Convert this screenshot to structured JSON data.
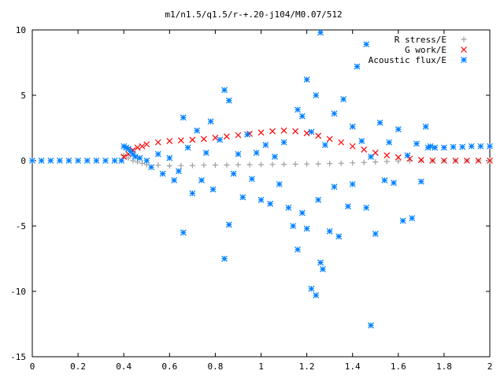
{
  "chart_data": {
    "type": "scatter",
    "title": "m1/n1.5/q1.5/r-+.20-j104/M0.07/512",
    "xlabel": "",
    "ylabel": "",
    "xlim": [
      0,
      2
    ],
    "ylim": [
      -15,
      10
    ],
    "x_ticks": [
      "0",
      "0.2",
      "0.4",
      "0.6",
      "0.8",
      "1",
      "1.2",
      "1.4",
      "1.6",
      "1.8",
      "2"
    ],
    "y_ticks": [
      "10",
      "5",
      "0",
      "-5",
      "-10",
      "-15"
    ],
    "grid": false,
    "legend_position": "top-right",
    "series": [
      {
        "name": "R stress/E",
        "color": "#a0a0a0",
        "marker": "plus",
        "points": [
          [
            0.4,
            0.4
          ],
          [
            0.42,
            0.2
          ],
          [
            0.44,
            0.0
          ],
          [
            0.46,
            -0.1
          ],
          [
            0.48,
            -0.2
          ],
          [
            0.5,
            -0.3
          ],
          [
            0.55,
            -0.35
          ],
          [
            0.6,
            -0.4
          ],
          [
            0.65,
            -0.38
          ],
          [
            0.7,
            -0.37
          ],
          [
            0.75,
            -0.35
          ],
          [
            0.8,
            -0.34
          ],
          [
            0.85,
            -0.33
          ],
          [
            0.9,
            -0.32
          ],
          [
            0.95,
            -0.31
          ],
          [
            1.0,
            -0.3
          ],
          [
            1.05,
            -0.29
          ],
          [
            1.1,
            -0.28
          ],
          [
            1.15,
            -0.27
          ],
          [
            1.2,
            -0.26
          ],
          [
            1.25,
            -0.25
          ],
          [
            1.3,
            -0.22
          ],
          [
            1.35,
            -0.2
          ],
          [
            1.4,
            -0.17
          ],
          [
            1.45,
            -0.14
          ],
          [
            1.5,
            -0.1
          ],
          [
            1.55,
            -0.07
          ],
          [
            1.6,
            -0.04
          ],
          [
            1.65,
            -0.02
          ],
          [
            1.7,
            0.0
          ],
          [
            1.75,
            0.0
          ],
          [
            1.8,
            0.0
          ],
          [
            1.85,
            0.0
          ],
          [
            1.9,
            0.0
          ],
          [
            1.95,
            0.0
          ],
          [
            2.0,
            0.0
          ]
        ]
      },
      {
        "name": "G work/E",
        "color": "#ff0000",
        "marker": "cross",
        "points": [
          [
            0.4,
            0.3
          ],
          [
            0.42,
            0.5
          ],
          [
            0.44,
            0.8
          ],
          [
            0.46,
            1.0
          ],
          [
            0.48,
            1.1
          ],
          [
            0.5,
            1.25
          ],
          [
            0.55,
            1.4
          ],
          [
            0.6,
            1.5
          ],
          [
            0.65,
            1.55
          ],
          [
            0.7,
            1.6
          ],
          [
            0.75,
            1.65
          ],
          [
            0.8,
            1.75
          ],
          [
            0.85,
            1.85
          ],
          [
            0.9,
            1.95
          ],
          [
            0.95,
            2.05
          ],
          [
            1.0,
            2.15
          ],
          [
            1.05,
            2.25
          ],
          [
            1.1,
            2.3
          ],
          [
            1.15,
            2.25
          ],
          [
            1.2,
            2.1
          ],
          [
            1.25,
            1.9
          ],
          [
            1.3,
            1.65
          ],
          [
            1.35,
            1.4
          ],
          [
            1.4,
            1.1
          ],
          [
            1.45,
            0.85
          ],
          [
            1.5,
            0.6
          ],
          [
            1.55,
            0.4
          ],
          [
            1.6,
            0.25
          ],
          [
            1.65,
            0.15
          ],
          [
            1.7,
            0.05
          ],
          [
            1.75,
            0.0
          ],
          [
            1.8,
            0.0
          ],
          [
            1.85,
            0.0
          ],
          [
            1.9,
            0.0
          ],
          [
            1.95,
            0.0
          ],
          [
            2.0,
            0.0
          ]
        ]
      },
      {
        "name": "Acoustic flux/E",
        "color": "#0080ff",
        "marker": "star",
        "points": [
          [
            0.0,
            0.0
          ],
          [
            0.04,
            0.0
          ],
          [
            0.08,
            0.0
          ],
          [
            0.12,
            0.0
          ],
          [
            0.16,
            0.0
          ],
          [
            0.2,
            0.0
          ],
          [
            0.24,
            0.0
          ],
          [
            0.28,
            0.0
          ],
          [
            0.32,
            0.0
          ],
          [
            0.36,
            0.0
          ],
          [
            0.39,
            0.0
          ],
          [
            0.4,
            1.1
          ],
          [
            0.41,
            1.0
          ],
          [
            0.42,
            0.9
          ],
          [
            0.43,
            0.7
          ],
          [
            0.44,
            0.5
          ],
          [
            0.45,
            0.3
          ],
          [
            0.47,
            0.2
          ],
          [
            0.5,
            0.0
          ],
          [
            0.52,
            -0.5
          ],
          [
            0.55,
            0.5
          ],
          [
            0.57,
            -1.0
          ],
          [
            0.6,
            0.2
          ],
          [
            0.62,
            -1.5
          ],
          [
            0.64,
            -0.8
          ],
          [
            0.66,
            3.3
          ],
          [
            0.66,
            -5.5
          ],
          [
            0.68,
            1.0
          ],
          [
            0.7,
            -2.5
          ],
          [
            0.72,
            2.3
          ],
          [
            0.74,
            -1.5
          ],
          [
            0.76,
            0.6
          ],
          [
            0.78,
            3.0
          ],
          [
            0.79,
            -2.2
          ],
          [
            0.82,
            1.6
          ],
          [
            0.84,
            5.4
          ],
          [
            0.84,
            -7.5
          ],
          [
            0.86,
            4.6
          ],
          [
            0.86,
            -4.9
          ],
          [
            0.88,
            -1.0
          ],
          [
            0.9,
            0.5
          ],
          [
            0.92,
            -2.8
          ],
          [
            0.94,
            2.0
          ],
          [
            0.96,
            -1.4
          ],
          [
            0.98,
            0.6
          ],
          [
            1.0,
            -3.0
          ],
          [
            1.02,
            1.2
          ],
          [
            1.04,
            -3.3
          ],
          [
            1.06,
            0.3
          ],
          [
            1.08,
            -1.8
          ],
          [
            1.1,
            1.4
          ],
          [
            1.12,
            -3.6
          ],
          [
            1.14,
            -5.0
          ],
          [
            1.16,
            3.9
          ],
          [
            1.16,
            -6.8
          ],
          [
            1.18,
            3.4
          ],
          [
            1.18,
            -4.0
          ],
          [
            1.2,
            6.2
          ],
          [
            1.2,
            -5.2
          ],
          [
            1.22,
            2.2
          ],
          [
            1.22,
            -9.8
          ],
          [
            1.24,
            5.0
          ],
          [
            1.24,
            -10.3
          ],
          [
            1.25,
            -3.0
          ],
          [
            1.26,
            9.8
          ],
          [
            1.26,
            -7.8
          ],
          [
            1.27,
            -8.3
          ],
          [
            1.28,
            1.2
          ],
          [
            1.3,
            -5.4
          ],
          [
            1.32,
            3.6
          ],
          [
            1.32,
            -2.0
          ],
          [
            1.34,
            -5.8
          ],
          [
            1.36,
            4.7
          ],
          [
            1.38,
            -3.5
          ],
          [
            1.4,
            2.6
          ],
          [
            1.4,
            -1.8
          ],
          [
            1.42,
            7.2
          ],
          [
            1.44,
            1.5
          ],
          [
            1.46,
            8.9
          ],
          [
            1.46,
            -3.6
          ],
          [
            1.48,
            0.3
          ],
          [
            1.48,
            -12.6
          ],
          [
            1.5,
            -5.6
          ],
          [
            1.52,
            2.9
          ],
          [
            1.54,
            -1.5
          ],
          [
            1.56,
            1.4
          ],
          [
            1.58,
            -1.7
          ],
          [
            1.6,
            2.4
          ],
          [
            1.62,
            -4.6
          ],
          [
            1.64,
            0.4
          ],
          [
            1.66,
            -4.4
          ],
          [
            1.68,
            1.3
          ],
          [
            1.7,
            -1.6
          ],
          [
            1.72,
            2.6
          ],
          [
            1.73,
            1.0
          ],
          [
            1.74,
            1.1
          ],
          [
            1.76,
            1.0
          ],
          [
            1.8,
            1.0
          ],
          [
            1.84,
            1.05
          ],
          [
            1.88,
            1.05
          ],
          [
            1.92,
            1.1
          ],
          [
            1.96,
            1.1
          ],
          [
            2.0,
            1.1
          ]
        ]
      }
    ]
  }
}
